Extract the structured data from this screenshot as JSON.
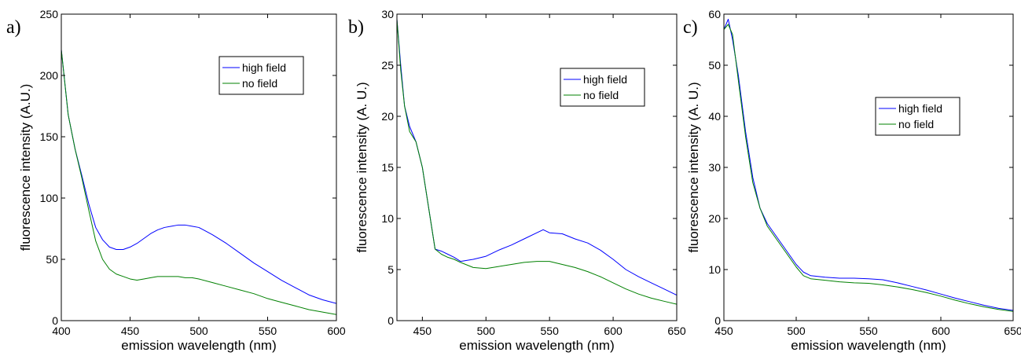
{
  "chart_data": [
    {
      "type": "line",
      "panel_label": "a)",
      "xlabel": "emission wavelength (nm)",
      "ylabel": "fluorescence intensity (A.U.)",
      "xlim": [
        400,
        600
      ],
      "ylim": [
        0,
        250
      ],
      "xticks": [
        400,
        450,
        500,
        550,
        600
      ],
      "yticks": [
        0,
        50,
        100,
        150,
        200,
        250
      ],
      "grid": false,
      "legend_position": "top-right",
      "series": [
        {
          "name": "high field",
          "color": "#0000ff",
          "x": [
            400,
            405,
            410,
            415,
            420,
            425,
            430,
            435,
            440,
            445,
            450,
            455,
            460,
            465,
            470,
            475,
            480,
            485,
            490,
            495,
            500,
            505,
            510,
            520,
            530,
            540,
            550,
            560,
            570,
            580,
            590,
            600
          ],
          "y": [
            221,
            168,
            140,
            118,
            95,
            76,
            66,
            60,
            58,
            58,
            60,
            63,
            67,
            71,
            74,
            76,
            77,
            78,
            78,
            77,
            76,
            73,
            70,
            63,
            55,
            47,
            40,
            33,
            27,
            21,
            17,
            14
          ]
        },
        {
          "name": "no field",
          "color": "#008000",
          "x": [
            400,
            405,
            410,
            415,
            420,
            425,
            430,
            435,
            440,
            445,
            450,
            455,
            460,
            465,
            470,
            475,
            480,
            485,
            490,
            495,
            500,
            510,
            520,
            530,
            540,
            550,
            560,
            570,
            580,
            590,
            600
          ],
          "y": [
            221,
            168,
            140,
            116,
            90,
            65,
            50,
            42,
            38,
            36,
            34,
            33,
            34,
            35,
            36,
            36,
            36,
            36,
            35,
            35,
            34,
            31,
            28,
            25,
            22,
            18,
            15,
            12,
            9,
            7,
            5
          ]
        }
      ]
    },
    {
      "type": "line",
      "panel_label": "b)",
      "xlabel": "emission wavelength (nm)",
      "ylabel": "fluorescence intensity (A. U.)",
      "xlim": [
        430,
        650
      ],
      "ylim": [
        0,
        30
      ],
      "xticks": [
        450,
        500,
        550,
        600,
        650
      ],
      "yticks": [
        0,
        5,
        10,
        15,
        20,
        25,
        30
      ],
      "grid": false,
      "legend_position": "top-right",
      "series": [
        {
          "name": "high field",
          "color": "#0000ff",
          "x": [
            430,
            433,
            436,
            440,
            445,
            450,
            455,
            460,
            465,
            470,
            475,
            480,
            490,
            500,
            510,
            520,
            530,
            540,
            545,
            550,
            560,
            570,
            580,
            590,
            600,
            610,
            620,
            630,
            640,
            650
          ],
          "y": [
            29.5,
            25,
            21,
            19,
            17.5,
            15,
            11,
            7,
            6.8,
            6.5,
            6.2,
            5.8,
            6,
            6.3,
            6.9,
            7.4,
            8,
            8.6,
            8.9,
            8.6,
            8.5,
            8,
            7.6,
            6.9,
            6,
            5,
            4.3,
            3.7,
            3.1,
            2.5
          ]
        },
        {
          "name": "no field",
          "color": "#008000",
          "x": [
            430,
            433,
            436,
            440,
            445,
            450,
            455,
            460,
            465,
            470,
            475,
            480,
            490,
            500,
            510,
            520,
            530,
            540,
            550,
            560,
            570,
            580,
            590,
            600,
            610,
            620,
            630,
            640,
            650
          ],
          "y": [
            29.5,
            24.5,
            21,
            18.5,
            17.5,
            15,
            11,
            7,
            6.5,
            6.2,
            6,
            5.7,
            5.2,
            5.1,
            5.3,
            5.5,
            5.7,
            5.8,
            5.8,
            5.5,
            5.2,
            4.8,
            4.3,
            3.7,
            3.1,
            2.6,
            2.2,
            1.9,
            1.6
          ]
        }
      ]
    },
    {
      "type": "line",
      "panel_label": "c)",
      "xlabel": "emission wavelength (nm)",
      "ylabel": "fluorescence intensity (A. U.)",
      "xlim": [
        450,
        650
      ],
      "ylim": [
        0,
        60
      ],
      "xticks": [
        450,
        500,
        550,
        600,
        650
      ],
      "yticks": [
        0,
        10,
        20,
        30,
        40,
        50,
        60
      ],
      "grid": false,
      "legend_position": "top-right",
      "series": [
        {
          "name": "high field",
          "color": "#0000ff",
          "x": [
            450,
            453,
            456,
            460,
            465,
            470,
            475,
            480,
            485,
            490,
            495,
            500,
            505,
            510,
            520,
            530,
            540,
            550,
            560,
            570,
            580,
            590,
            600,
            610,
            620,
            630,
            640,
            650
          ],
          "y": [
            57,
            59,
            55,
            48,
            37,
            28,
            22,
            19,
            17,
            15,
            13,
            11,
            9.5,
            8.8,
            8.5,
            8.3,
            8.3,
            8.2,
            8,
            7.4,
            6.7,
            6,
            5.2,
            4.4,
            3.7,
            3,
            2.4,
            2
          ]
        },
        {
          "name": "no field",
          "color": "#008000",
          "x": [
            450,
            453,
            456,
            460,
            465,
            470,
            475,
            480,
            485,
            490,
            495,
            500,
            505,
            510,
            520,
            530,
            540,
            550,
            560,
            570,
            580,
            590,
            600,
            610,
            620,
            630,
            640,
            650
          ],
          "y": [
            57,
            58,
            56,
            47,
            36,
            27,
            22,
            18.5,
            16.5,
            14.5,
            12.5,
            10.5,
            8.8,
            8.2,
            7.9,
            7.6,
            7.4,
            7.3,
            7,
            6.6,
            6.1,
            5.5,
            4.8,
            4,
            3.3,
            2.7,
            2.2,
            1.8
          ]
        }
      ]
    }
  ]
}
